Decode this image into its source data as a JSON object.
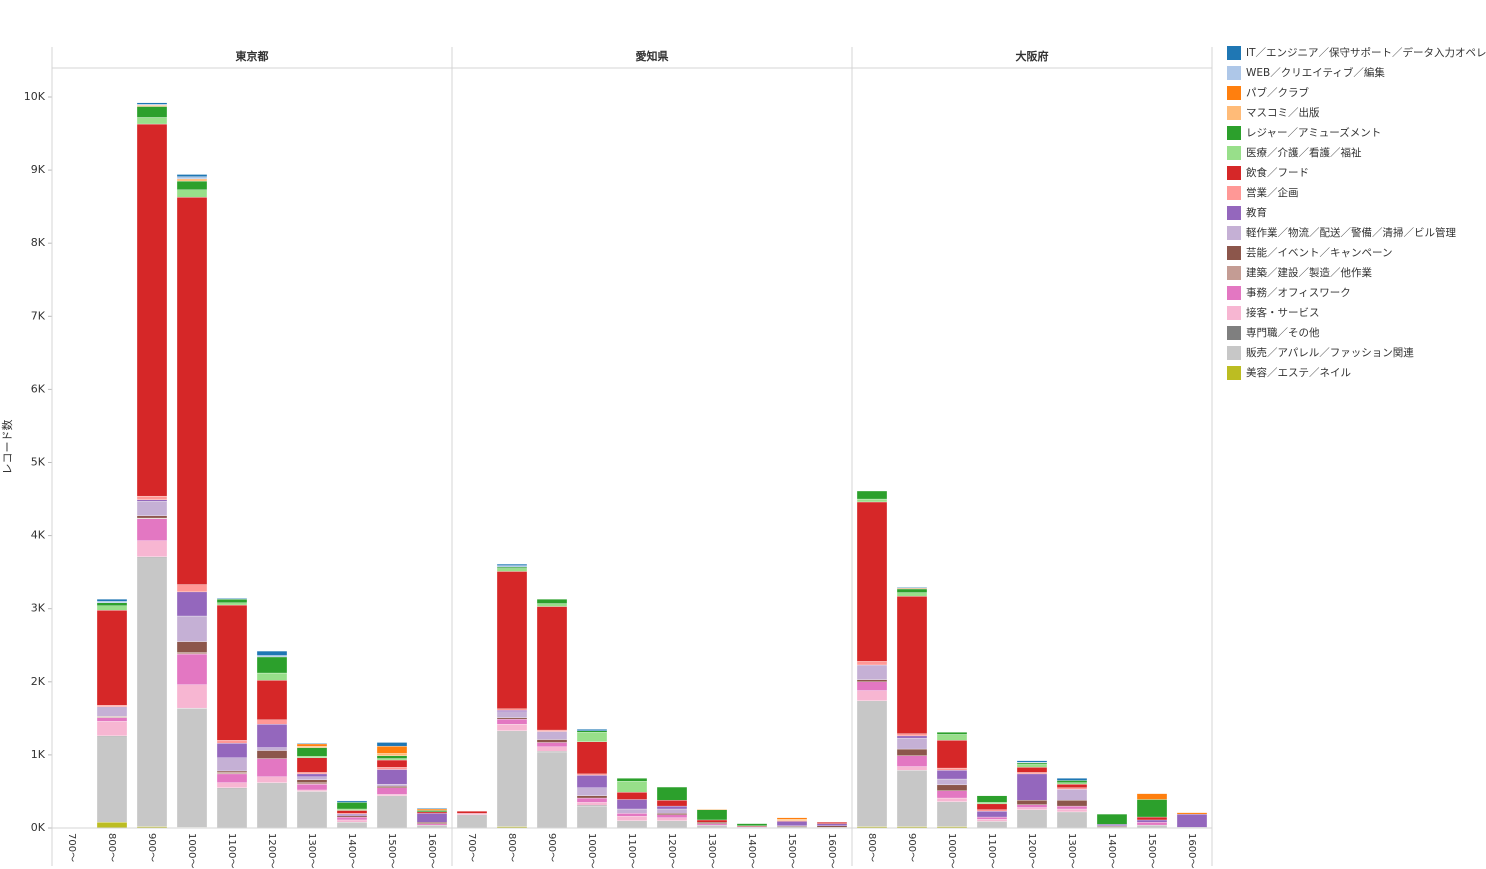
{
  "chart_data": {
    "type": "bar",
    "stacked": true,
    "y_label": "レコード数",
    "ylim": [
      0,
      10000
    ],
    "yticks": [
      {
        "value": 0,
        "label": "0K"
      },
      {
        "value": 1000,
        "label": "1K"
      },
      {
        "value": 2000,
        "label": "2K"
      },
      {
        "value": 3000,
        "label": "3K"
      },
      {
        "value": 4000,
        "label": "4K"
      },
      {
        "value": 5000,
        "label": "5K"
      },
      {
        "value": 6000,
        "label": "6K"
      },
      {
        "value": 7000,
        "label": "7K"
      },
      {
        "value": 8000,
        "label": "8K"
      },
      {
        "value": 9000,
        "label": "9K"
      },
      {
        "value": 10000,
        "label": "10K"
      }
    ],
    "series": [
      {
        "name": "IT／エンジニア／保守サポート／データ入力オペレーター",
        "color": "#1f77b4"
      },
      {
        "name": "WEB／クリエイティブ／編集",
        "color": "#aec7e8"
      },
      {
        "name": "パブ／クラブ",
        "color": "#ff7f0e"
      },
      {
        "name": "マスコミ／出版",
        "color": "#ffbb78"
      },
      {
        "name": "レジャー／アミューズメント",
        "color": "#2ca02c"
      },
      {
        "name": "医療／介護／看護／福祉",
        "color": "#98df8a"
      },
      {
        "name": "飲食／フード",
        "color": "#d62728"
      },
      {
        "name": "営業／企画",
        "color": "#ff9896"
      },
      {
        "name": "教育",
        "color": "#9467bd"
      },
      {
        "name": "軽作業／物流／配送／警備／清掃／ビル管理",
        "color": "#c5b0d5"
      },
      {
        "name": "芸能／イベント／キャンペーン",
        "color": "#8c564b"
      },
      {
        "name": "建築／建設／製造／他作業",
        "color": "#c49c94"
      },
      {
        "name": "事務／オフィスワーク",
        "color": "#e377c2"
      },
      {
        "name": "接客・サービス",
        "color": "#f7b6d2"
      },
      {
        "name": "専門職／その他",
        "color": "#7f7f7f"
      },
      {
        "name": "販売／アパレル／ファッション関連",
        "color": "#c7c7c7"
      },
      {
        "name": "美容／エステ／ネイル",
        "color": "#bcbd22"
      }
    ],
    "panels": [
      {
        "title": "東京都",
        "categories": [
          "700～",
          "800～",
          "900～",
          "1000～",
          "1100～",
          "1200～",
          "1300～",
          "1400～",
          "1500～",
          "1600～"
        ],
        "values": [
          [
            0,
            30,
            20,
            30,
            10,
            60,
            10,
            20,
            50,
            10
          ],
          [
            0,
            20,
            10,
            30,
            0,
            20,
            0,
            0,
            0,
            0
          ],
          [
            0,
            0,
            10,
            10,
            0,
            0,
            30,
            0,
            100,
            20
          ],
          [
            0,
            0,
            10,
            20,
            0,
            0,
            20,
            0,
            30,
            0
          ],
          [
            0,
            40,
            150,
            120,
            50,
            220,
            120,
            90,
            40,
            20
          ],
          [
            0,
            60,
            90,
            100,
            30,
            100,
            20,
            20,
            20,
            0
          ],
          [
            0,
            1300,
            5090,
            5300,
            1850,
            540,
            200,
            40,
            100,
            20
          ],
          [
            0,
            20,
            50,
            100,
            40,
            60,
            20,
            10,
            30,
            0
          ],
          [
            0,
            0,
            20,
            330,
            200,
            320,
            40,
            20,
            200,
            120
          ],
          [
            0,
            130,
            200,
            350,
            180,
            40,
            40,
            0,
            30,
            0
          ],
          [
            0,
            10,
            30,
            150,
            20,
            110,
            40,
            20,
            20,
            20
          ],
          [
            0,
            10,
            10,
            20,
            20,
            0,
            20,
            0,
            0,
            0
          ],
          [
            0,
            50,
            300,
            420,
            120,
            250,
            80,
            40,
            90,
            20
          ],
          [
            0,
            200,
            220,
            320,
            70,
            80,
            20,
            30,
            20,
            0
          ],
          [
            0,
            10,
            10,
            10,
            10,
            0,
            0,
            0,
            0,
            0
          ],
          [
            0,
            1170,
            3680,
            1620,
            540,
            620,
            500,
            80,
            440,
            40
          ],
          [
            0,
            80,
            20,
            10,
            0,
            0,
            0,
            0,
            0,
            0
          ]
        ]
      },
      {
        "title": "愛知県",
        "categories": [
          "700～",
          "800～",
          "900～",
          "1000～",
          "1100～",
          "1200～",
          "1300～",
          "1400～",
          "1500～",
          "1600～"
        ],
        "values": [
          [
            0,
            20,
            0,
            20,
            0,
            0,
            0,
            0,
            0,
            0
          ],
          [
            0,
            20,
            0,
            0,
            0,
            0,
            0,
            0,
            0,
            0
          ],
          [
            0,
            0,
            0,
            0,
            0,
            0,
            0,
            0,
            20,
            0
          ],
          [
            0,
            0,
            0,
            0,
            0,
            0,
            10,
            0,
            20,
            0
          ],
          [
            0,
            20,
            60,
            20,
            40,
            180,
            140,
            30,
            0,
            0
          ],
          [
            0,
            40,
            40,
            130,
            150,
            0,
            0,
            0,
            0,
            0
          ],
          [
            30,
            1880,
            1690,
            440,
            100,
            80,
            30,
            10,
            10,
            20
          ],
          [
            0,
            20,
            20,
            20,
            0,
            0,
            0,
            0,
            0,
            0
          ],
          [
            0,
            20,
            0,
            170,
            130,
            40,
            0,
            10,
            60,
            30
          ],
          [
            0,
            80,
            110,
            110,
            60,
            60,
            0,
            0,
            0,
            0
          ],
          [
            0,
            20,
            40,
            30,
            0,
            20,
            20,
            0,
            10,
            20
          ],
          [
            0,
            0,
            0,
            0,
            0,
            0,
            0,
            0,
            0,
            0
          ],
          [
            0,
            70,
            60,
            60,
            40,
            40,
            20,
            0,
            0,
            0
          ],
          [
            20,
            90,
            60,
            40,
            60,
            40,
            0,
            0,
            0,
            0
          ],
          [
            0,
            0,
            10,
            10,
            0,
            0,
            0,
            0,
            0,
            0
          ],
          [
            180,
            1310,
            1040,
            300,
            100,
            100,
            40,
            10,
            20,
            10
          ],
          [
            0,
            20,
            0,
            0,
            0,
            0,
            0,
            0,
            0,
            0
          ]
        ]
      },
      {
        "title": "大阪府",
        "categories": [
          "800～",
          "900～",
          "1000～",
          "1100～",
          "1200～",
          "1300～",
          "1400～",
          "1500～",
          "1600～"
        ],
        "values": [
          [
            0,
            10,
            0,
            0,
            20,
            30,
            0,
            0,
            0
          ],
          [
            0,
            0,
            0,
            0,
            10,
            0,
            0,
            0,
            0
          ],
          [
            0,
            10,
            0,
            0,
            0,
            0,
            0,
            80,
            20
          ],
          [
            0,
            0,
            0,
            0,
            0,
            0,
            0,
            0,
            0
          ],
          [
            110,
            50,
            30,
            90,
            20,
            30,
            140,
            240,
            0
          ],
          [
            40,
            50,
            80,
            20,
            40,
            20,
            0,
            0,
            0
          ],
          [
            2180,
            1880,
            380,
            80,
            70,
            50,
            0,
            40,
            0
          ],
          [
            50,
            30,
            30,
            20,
            20,
            20,
            0,
            0,
            0
          ],
          [
            0,
            30,
            120,
            80,
            360,
            0,
            20,
            30,
            180
          ],
          [
            200,
            150,
            80,
            0,
            0,
            150,
            0,
            0,
            0
          ],
          [
            30,
            90,
            80,
            0,
            60,
            80,
            10,
            0,
            10
          ],
          [
            0,
            0,
            0,
            0,
            0,
            0,
            0,
            0,
            0
          ],
          [
            120,
            150,
            100,
            30,
            40,
            40,
            0,
            40,
            0
          ],
          [
            140,
            50,
            50,
            30,
            30,
            40,
            0,
            0,
            0
          ],
          [
            0,
            0,
            0,
            0,
            0,
            0,
            0,
            0,
            0
          ],
          [
            1720,
            770,
            340,
            90,
            250,
            220,
            20,
            40,
            0
          ],
          [
            20,
            20,
            20,
            0,
            0,
            0,
            0,
            0,
            0
          ]
        ]
      }
    ]
  }
}
